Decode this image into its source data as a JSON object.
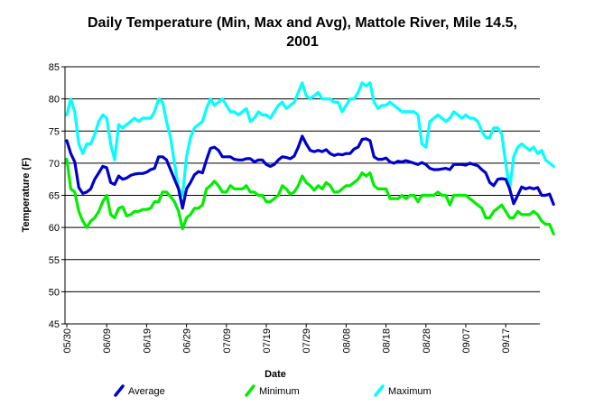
{
  "chart_data": {
    "type": "line",
    "title_line1": "Daily Temperature (Min, Max and Avg), Mattole River, Mile 14.5,",
    "title_line2": "2001",
    "xlabel": "Date",
    "ylabel": "Temperature (F)",
    "ylim": [
      45,
      85
    ],
    "yticks": [
      "45",
      "50",
      "55",
      "60",
      "65",
      "70",
      "75",
      "80",
      "85"
    ],
    "grid": "horizontal",
    "legend_position": "bottom",
    "xtick_labels": [
      "05/30",
      "06/09",
      "06/19",
      "06/29",
      "07/09",
      "07/19",
      "07/29",
      "08/08",
      "08/18",
      "08/28",
      "09/07",
      "09/17"
    ],
    "x_start": "05/30/2001",
    "x_end": "09/22/2001",
    "series": [
      {
        "name": "Average",
        "color": "#0000cc",
        "values": [
          73.5,
          71.5,
          70.2,
          66.2,
          65.3,
          65.5,
          66.0,
          67.5,
          68.5,
          69.5,
          69.3,
          67.0,
          66.7,
          68.0,
          67.5,
          67.7,
          68.1,
          68.3,
          68.4,
          68.4,
          68.6,
          69.0,
          69.2,
          71.0,
          71.0,
          70.5,
          69.0,
          67.5,
          66.0,
          63.0,
          66.0,
          67.0,
          68.2,
          68.7,
          68.5,
          70.5,
          72.3,
          72.5,
          72.0,
          71.0,
          71.0,
          71.0,
          70.6,
          70.5,
          70.5,
          70.7,
          70.7,
          70.2,
          70.5,
          70.5,
          69.8,
          69.5,
          69.8,
          70.5,
          71.0,
          70.9,
          70.7,
          71.1,
          72.5,
          74.2,
          73.0,
          72.0,
          71.8,
          72.0,
          71.8,
          72.1,
          71.5,
          71.2,
          71.4,
          71.3,
          71.5,
          71.5,
          72.2,
          72.5,
          73.7,
          73.8,
          73.5,
          71.0,
          70.6,
          70.6,
          70.8,
          70.2,
          70.0,
          70.3,
          70.2,
          70.4,
          70.2,
          70.0,
          69.8,
          70.1,
          69.8,
          69.2,
          69.0,
          69.0,
          69.1,
          69.2,
          69.0,
          69.8,
          69.8,
          69.8,
          69.7,
          70.0,
          69.8,
          69.6,
          69.0,
          68.5,
          67.0,
          66.5,
          67.5,
          67.6,
          67.5,
          66.0,
          63.7,
          65.0,
          66.3,
          66.0,
          66.2,
          66.0,
          66.2,
          65.0,
          65.0,
          65.2,
          63.6
        ]
      },
      {
        "name": "Minimum",
        "color": "#00ee00",
        "values": [
          70.6,
          66.0,
          65.5,
          62.5,
          61.0,
          60.0,
          61.0,
          61.5,
          62.5,
          64.0,
          65.0,
          62.0,
          61.5,
          63.0,
          63.2,
          61.8,
          62.0,
          62.5,
          62.5,
          62.8,
          62.8,
          63.0,
          64.0,
          64.0,
          65.5,
          65.5,
          64.8,
          64.0,
          62.5,
          59.8,
          61.5,
          62.0,
          63.0,
          63.0,
          63.5,
          66.0,
          66.5,
          67.2,
          66.5,
          65.5,
          65.5,
          66.5,
          66.0,
          66.0,
          66.0,
          66.5,
          65.5,
          65.5,
          65.0,
          65.0,
          64.0,
          64.0,
          64.5,
          65.0,
          66.5,
          66.0,
          65.2,
          65.5,
          66.5,
          68.0,
          67.0,
          66.5,
          65.8,
          66.5,
          66.0,
          67.0,
          66.5,
          65.5,
          65.5,
          66.0,
          66.5,
          66.5,
          67.0,
          67.5,
          68.5,
          68.0,
          68.5,
          66.5,
          66.0,
          66.0,
          66.0,
          64.5,
          64.5,
          64.5,
          65.0,
          64.5,
          65.0,
          65.0,
          64.0,
          65.0,
          65.0,
          65.0,
          65.0,
          65.5,
          65.0,
          65.0,
          63.5,
          65.0,
          65.0,
          65.0,
          65.0,
          64.5,
          64.0,
          63.5,
          63.0,
          61.5,
          61.5,
          62.5,
          63.0,
          63.5,
          62.5,
          61.5,
          61.5,
          62.5,
          62.0,
          62.0,
          62.0,
          62.5,
          62.0,
          61.0,
          60.5,
          60.5,
          59.0
        ]
      },
      {
        "name": "Maximum",
        "color": "#00ffff",
        "values": [
          77.5,
          80.0,
          78.0,
          73.0,
          71.5,
          73.0,
          73.0,
          74.5,
          76.5,
          77.5,
          77.0,
          73.0,
          70.5,
          76.0,
          75.5,
          76.0,
          76.5,
          77.0,
          76.5,
          77.0,
          77.0,
          77.0,
          78.0,
          80.0,
          79.5,
          76.5,
          74.0,
          70.0,
          66.0,
          65.0,
          71.0,
          74.0,
          75.5,
          76.0,
          76.5,
          78.5,
          80.0,
          79.0,
          79.5,
          80.0,
          79.0,
          78.0,
          78.0,
          77.5,
          78.0,
          78.5,
          76.5,
          77.0,
          78.0,
          77.5,
          77.5,
          77.0,
          78.0,
          79.0,
          79.5,
          78.5,
          79.0,
          79.5,
          81.0,
          82.5,
          80.5,
          80.0,
          80.5,
          81.0,
          80.0,
          80.0,
          80.0,
          79.5,
          79.5,
          78.0,
          79.0,
          80.0,
          80.0,
          81.0,
          82.5,
          82.0,
          82.5,
          79.5,
          78.5,
          79.0,
          79.0,
          79.5,
          79.0,
          78.5,
          78.0,
          78.0,
          78.0,
          78.0,
          77.5,
          73.0,
          72.5,
          76.5,
          77.0,
          77.5,
          77.0,
          76.5,
          77.0,
          78.0,
          77.5,
          77.0,
          77.5,
          77.0,
          77.0,
          76.5,
          75.0,
          74.0,
          74.0,
          75.5,
          75.5,
          74.5,
          70.0,
          66.0,
          71.0,
          72.5,
          73.0,
          72.5,
          72.0,
          72.5,
          71.5,
          72.0,
          70.5,
          70.0,
          69.5
        ]
      }
    ]
  }
}
